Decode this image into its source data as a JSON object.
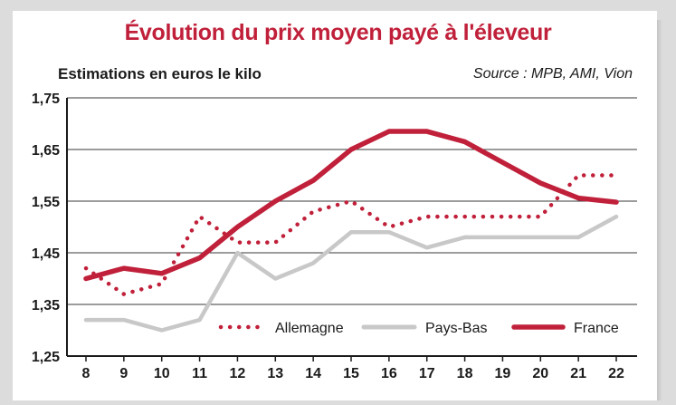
{
  "chart_data": {
    "type": "line",
    "title": "Évolution du prix moyen payé à l'éleveur",
    "subtitle": "Estimations en euros le kilo",
    "source": "Source : MPB, AMI, Vion",
    "x": [
      8,
      9,
      10,
      11,
      12,
      13,
      14,
      15,
      16,
      17,
      18,
      19,
      20,
      21,
      22
    ],
    "ylim": [
      1.25,
      1.75
    ],
    "yticks": [
      "1,75",
      "1,65",
      "1,55",
      "1,45",
      "1,35",
      "1,25"
    ],
    "ytick_values": [
      1.75,
      1.65,
      1.55,
      1.45,
      1.35,
      1.25
    ],
    "grid": true,
    "legend_position": "bottom",
    "series": [
      {
        "name": "Allemagne",
        "style": "dotted",
        "color": "#c0203a",
        "values": [
          1.42,
          1.37,
          1.39,
          1.52,
          1.47,
          1.47,
          1.53,
          1.55,
          1.5,
          1.52,
          1.52,
          1.52,
          1.52,
          1.6,
          1.6
        ]
      },
      {
        "name": "Pays-Bas",
        "style": "solid",
        "color": "#c8c8c8",
        "values": [
          1.32,
          1.32,
          1.3,
          1.32,
          1.45,
          1.4,
          1.43,
          1.49,
          1.49,
          1.46,
          1.48,
          1.48,
          1.48,
          1.48,
          1.52
        ]
      },
      {
        "name": "France",
        "style": "solid",
        "color": "#c0203a",
        "values": [
          1.4,
          1.42,
          1.41,
          1.44,
          1.5,
          1.55,
          1.59,
          1.65,
          1.685,
          1.685,
          1.665,
          1.625,
          1.585,
          1.556,
          1.548
        ]
      }
    ]
  }
}
